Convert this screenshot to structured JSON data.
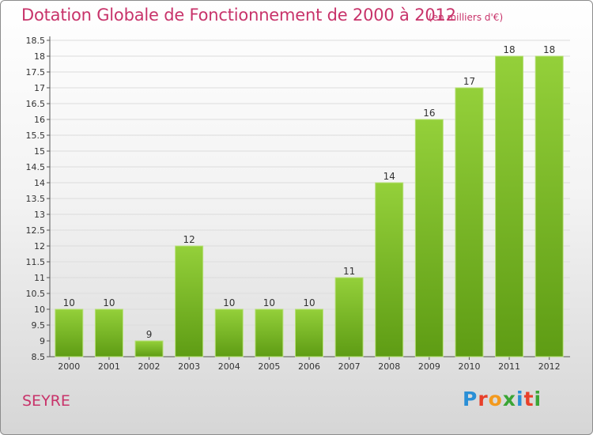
{
  "chart_data": {
    "type": "bar",
    "title": "Dotation Globale de Fonctionnement de 2000 à 2012",
    "subtitle": "(en milliers d'€)",
    "categories": [
      "2000",
      "2001",
      "2002",
      "2003",
      "2004",
      "2005",
      "2006",
      "2007",
      "2008",
      "2009",
      "2010",
      "2011",
      "2012"
    ],
    "values": [
      10,
      10,
      9,
      12,
      10,
      10,
      10,
      11,
      14,
      16,
      17,
      18,
      18
    ],
    "ylim": [
      8.5,
      18.5
    ],
    "yticks": [
      "8.5",
      "9",
      "9.5",
      "10",
      "10.5",
      "11",
      "11.5",
      "12",
      "12.5",
      "13",
      "13.5",
      "14",
      "14.5",
      "15",
      "15.5",
      "16",
      "16.5",
      "17",
      "17.5",
      "18",
      "18.5"
    ],
    "grid": true,
    "bar_color": "#7cbd2c"
  },
  "footer": {
    "commune": "SEYRE",
    "logo": "Proxiti"
  }
}
